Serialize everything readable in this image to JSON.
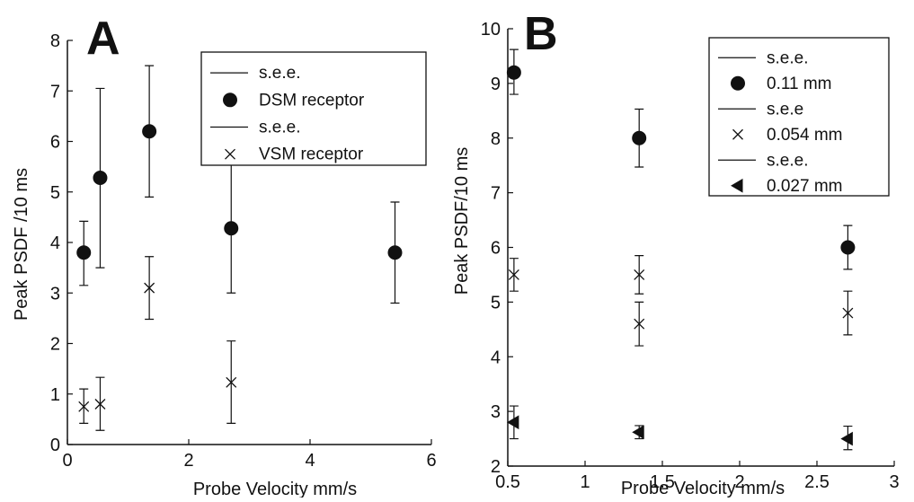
{
  "chart_data": [
    {
      "type": "scatter",
      "panel_label": "A",
      "xlabel": "Probe Velocity  mm/s",
      "ylabel": "Peak PSDF /10 ms",
      "xlim": [
        0,
        6
      ],
      "ylim": [
        0,
        8
      ],
      "xticks": [
        0,
        2,
        4,
        6
      ],
      "yticks": [
        0,
        1,
        2,
        3,
        4,
        5,
        6,
        7,
        8
      ],
      "grid": false,
      "legend_position": "top-right",
      "legend": [
        "s.e.e.",
        "DSM receptor",
        "s.e.e.",
        "VSM receptor"
      ],
      "series": [
        {
          "name": "DSM receptor",
          "marker": "filled-circle",
          "points": [
            {
              "x": 0.27,
              "y": 3.8,
              "lo": 3.15,
              "hi": 4.42
            },
            {
              "x": 0.54,
              "y": 5.28,
              "lo": 3.5,
              "hi": 7.05
            },
            {
              "x": 1.35,
              "y": 6.2,
              "lo": 4.9,
              "hi": 7.5
            },
            {
              "x": 2.7,
              "y": 4.28,
              "lo": 3.0,
              "hi": 5.58
            },
            {
              "x": 5.4,
              "y": 3.8,
              "lo": 2.8,
              "hi": 4.8
            }
          ]
        },
        {
          "name": "VSM receptor",
          "marker": "x",
          "points": [
            {
              "x": 0.27,
              "y": 0.75,
              "lo": 0.42,
              "hi": 1.1
            },
            {
              "x": 0.54,
              "y": 0.8,
              "lo": 0.28,
              "hi": 1.33
            },
            {
              "x": 1.35,
              "y": 3.1,
              "lo": 2.48,
              "hi": 3.72
            },
            {
              "x": 2.7,
              "y": 1.23,
              "lo": 0.42,
              "hi": 2.05
            }
          ]
        }
      ]
    },
    {
      "type": "scatter",
      "panel_label": "B",
      "xlabel": "Probe Velocity mm/s",
      "ylabel": "Peak PSDF/10 ms",
      "xlim": [
        0.5,
        3
      ],
      "ylim": [
        2,
        10
      ],
      "xticks": [
        0.5,
        1,
        1.5,
        2,
        2.5,
        3
      ],
      "yticks": [
        2,
        3,
        4,
        5,
        6,
        7,
        8,
        9,
        10
      ],
      "grid": false,
      "legend_position": "top-right",
      "legend": [
        "s.e.e.",
        "0.11 mm",
        "s.e.e",
        "0.054 mm",
        "s.e.e.",
        "0.027 mm"
      ],
      "series": [
        {
          "name": "0.11 mm",
          "marker": "filled-circle",
          "points": [
            {
              "x": 0.54,
              "y": 9.2,
              "lo": 8.8,
              "hi": 9.62
            },
            {
              "x": 1.35,
              "y": 8.0,
              "lo": 7.47,
              "hi": 8.53
            },
            {
              "x": 2.7,
              "y": 6.0,
              "lo": 5.6,
              "hi": 6.4
            }
          ]
        },
        {
          "name": "0.054 mm",
          "marker": "x",
          "points": [
            {
              "x": 0.54,
              "y": 5.5,
              "lo": 5.2,
              "hi": 5.8
            },
            {
              "x": 1.35,
              "y": 5.5,
              "lo": 5.15,
              "hi": 5.85
            },
            {
              "x": 1.35,
              "y": 4.6,
              "lo": 4.2,
              "hi": 5.0
            },
            {
              "x": 2.7,
              "y": 4.8,
              "lo": 4.4,
              "hi": 5.2
            }
          ]
        },
        {
          "name": "0.027 mm",
          "marker": "left-triangle",
          "points": [
            {
              "x": 0.54,
              "y": 2.8,
              "lo": 2.5,
              "hi": 3.1
            },
            {
              "x": 1.35,
              "y": 2.62,
              "lo": 2.5,
              "hi": 2.74
            },
            {
              "x": 2.7,
              "y": 2.5,
              "lo": 2.3,
              "hi": 2.73
            }
          ]
        }
      ]
    }
  ]
}
